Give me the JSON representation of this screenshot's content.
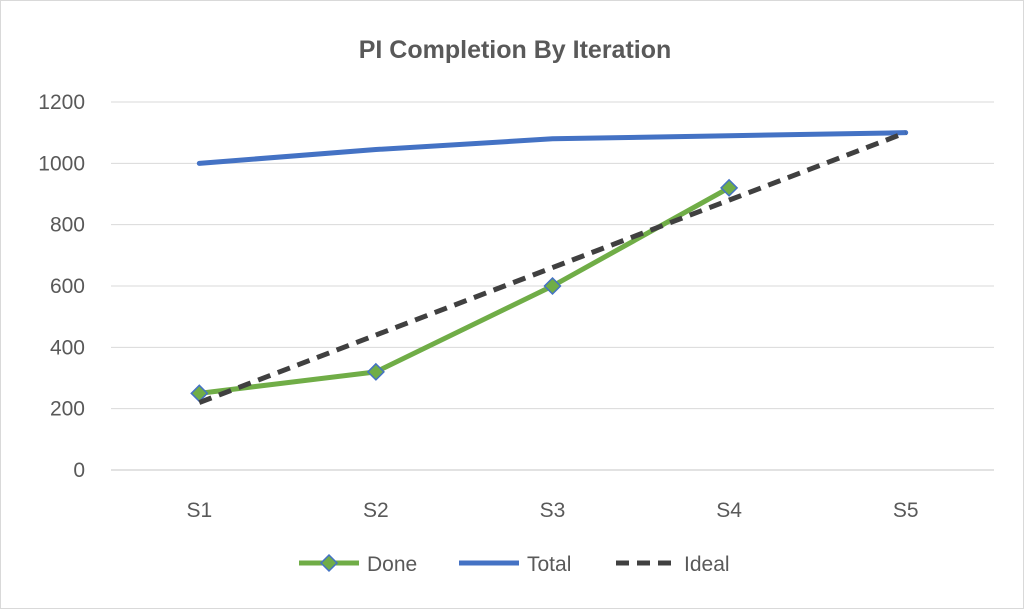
{
  "chart_data": {
    "type": "line",
    "title": "PI Completion By Iteration",
    "categories": [
      "S1",
      "S2",
      "S3",
      "S4",
      "S5"
    ],
    "ylim": [
      0,
      1200
    ],
    "yticks": [
      0,
      200,
      400,
      600,
      800,
      1000,
      1200
    ],
    "grid": true,
    "legend_position": "bottom",
    "series": [
      {
        "name": "Done",
        "values": [
          250,
          320,
          600,
          920,
          null
        ],
        "color": "#70ad47",
        "marker": "diamond",
        "marker_color": "#70ad47",
        "marker_edge": "#4472c4",
        "dash": "solid"
      },
      {
        "name": "Total",
        "values": [
          1000,
          1045,
          1080,
          1090,
          1100
        ],
        "color": "#4472c4",
        "marker": "none",
        "dash": "solid"
      },
      {
        "name": "Ideal",
        "values": [
          220,
          440,
          660,
          880,
          1100
        ],
        "color": "#404040",
        "marker": "none",
        "dash": "dashed"
      }
    ]
  }
}
